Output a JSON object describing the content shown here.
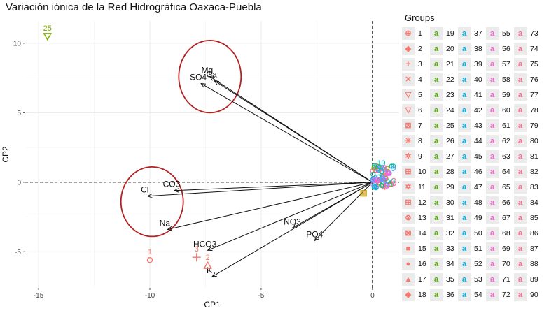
{
  "title": "Variación iónica de la Red Hidrográfica Oaxaca-Puebla",
  "chart_data": {
    "type": "scatter",
    "subtype": "pca-biplot",
    "xlabel": "CP1",
    "ylabel": "CP2",
    "xlim": [
      -15.6,
      1.2
    ],
    "ylim": [
      -7.6,
      11.6
    ],
    "x_ticks": [
      -15,
      -10,
      -5,
      0
    ],
    "y_ticks": [
      -5,
      0,
      5,
      10
    ],
    "grid": true,
    "background": "#ffffff",
    "reference_lines": {
      "x": 0,
      "y": 0,
      "style": "dashed"
    },
    "legend": {
      "title": "Groups",
      "placement": "right",
      "columns": 5,
      "items": [
        "1",
        "2",
        "3",
        "4",
        "5",
        "6",
        "7",
        "8",
        "9",
        "10",
        "11",
        "12",
        "13",
        "14",
        "15",
        "16",
        "17",
        "18",
        "19",
        "20",
        "21",
        "22",
        "23",
        "24",
        "25",
        "26",
        "27",
        "28",
        "29",
        "30",
        "31",
        "32",
        "33",
        "34",
        "35",
        "36",
        "37",
        "38",
        "39",
        "40",
        "41",
        "42",
        "43",
        "44",
        "45",
        "46",
        "47",
        "48",
        "49",
        "50",
        "51",
        "52",
        "53",
        "54",
        "55",
        "56",
        "57",
        "58",
        "59",
        "60",
        "61",
        "62",
        "63",
        "64",
        "65",
        "66",
        "67",
        "68",
        "69",
        "70",
        "71",
        "72",
        "73",
        "74",
        "75",
        "76",
        "77",
        "78",
        "79",
        "80",
        "81",
        "82",
        "83",
        "84",
        "85",
        "86",
        "87",
        "88",
        "89",
        "90"
      ]
    },
    "vectors": [
      {
        "label": "Ca",
        "x": -7.1,
        "y": 7.3
      },
      {
        "label": "Mg",
        "x": -7.3,
        "y": 7.6
      },
      {
        "label": "SO4",
        "x": -7.7,
        "y": 7.1
      },
      {
        "label": "Cl",
        "x": -10.1,
        "y": -1.0
      },
      {
        "label": "CO3",
        "x": -8.9,
        "y": -0.6
      },
      {
        "label": "Na",
        "x": -9.2,
        "y": -3.4
      },
      {
        "label": "NO3",
        "x": -3.6,
        "y": -3.3
      },
      {
        "label": "PO4",
        "x": -2.6,
        "y": -4.2
      },
      {
        "label": "HCO3",
        "x": -7.4,
        "y": -4.9
      },
      {
        "label": "K",
        "x": -7.2,
        "y": -6.8
      }
    ],
    "highlight_circles": [
      {
        "cx": -7.3,
        "cy": 7.6,
        "rx": 1.4,
        "ry": 2.6
      },
      {
        "cx": -9.9,
        "cy": -1.4,
        "rx": 1.4,
        "ry": 2.5
      }
    ],
    "points": [
      {
        "label": "25",
        "x": -14.6,
        "y": 10.5,
        "color": "#7cae00",
        "shape": "triangle-down"
      },
      {
        "label": "1",
        "x": -10.0,
        "y": -5.6,
        "color": "#f8766d",
        "shape": "circle"
      },
      {
        "label": "3",
        "x": -7.9,
        "y": -5.4,
        "color": "#f8766d",
        "shape": "plus"
      },
      {
        "label": "2",
        "x": -7.4,
        "y": -6.0,
        "color": "#f8766d",
        "shape": "triangle"
      },
      {
        "label": "",
        "x": -0.4,
        "y": -0.8,
        "color": "#c49a00",
        "shape": "square"
      },
      {
        "label": "19",
        "x": 0.4,
        "y": 0.8,
        "color": "#00bfc4",
        "shape": "circle"
      }
    ],
    "cluster": {
      "x_range": [
        0.0,
        1.0
      ],
      "y_range": [
        -0.4,
        1.2
      ],
      "colors": [
        "#f8766d",
        "#00bfc4",
        "#c77cff",
        "#ff61c3",
        "#7cae00",
        "#00b0f6",
        "#e76bf3",
        "#00c08b",
        "#619cff",
        "#ff67a4"
      ]
    }
  }
}
